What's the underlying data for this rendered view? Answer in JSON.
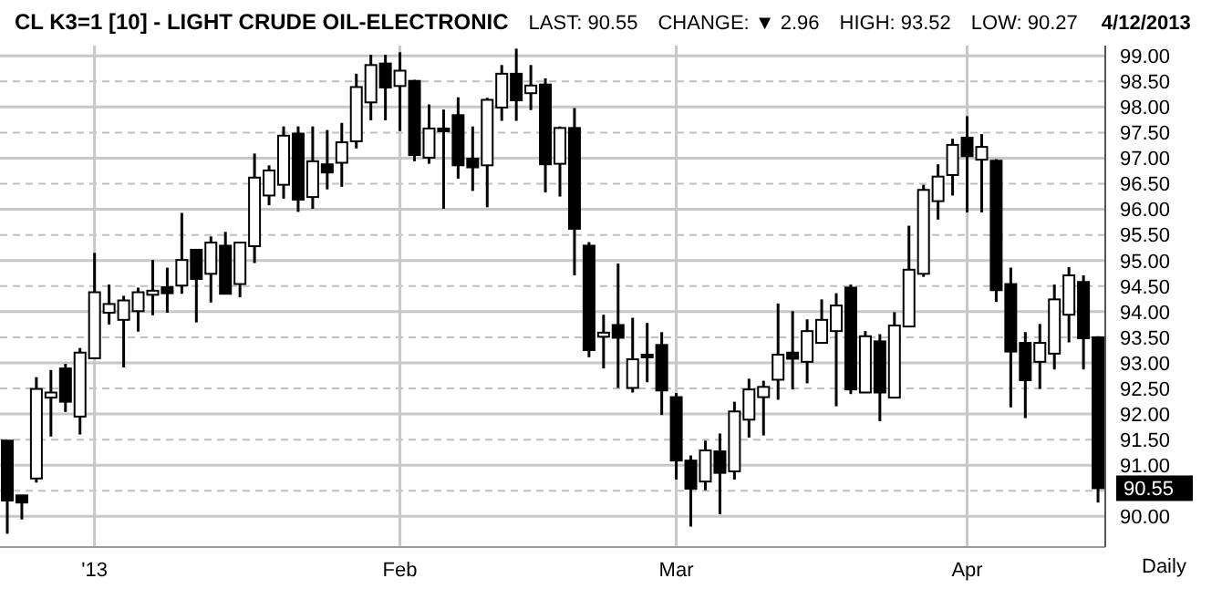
{
  "chart_data": {
    "type": "candlestick",
    "title": "CL K3=1 [10] - LIGHT CRUDE OIL-ELECTRONIC",
    "annotations": [
      "LAST: 90.55",
      "CHANGE: ▼ 2.96",
      "HIGH: 93.52",
      "LOW: 90.27",
      "4/12/2013",
      "90.55",
      "Daily"
    ],
    "categories": [
      null,
      null,
      null,
      null,
      null,
      null,
      "'13",
      null,
      null,
      null,
      null,
      null,
      null,
      null,
      null,
      null,
      null,
      null,
      null,
      null,
      null,
      null,
      null,
      null,
      null,
      null,
      null,
      "Feb",
      null,
      null,
      null,
      null,
      null,
      null,
      null,
      null,
      null,
      null,
      null,
      null,
      null,
      null,
      null,
      null,
      null,
      null,
      "Mar",
      null,
      null,
      null,
      null,
      null,
      null,
      null,
      null,
      null,
      null,
      null,
      null,
      null,
      null,
      null,
      null,
      null,
      null,
      null,
      "Apr",
      null,
      null,
      null,
      null,
      null,
      null,
      null,
      null,
      null
    ],
    "ohlc": [
      [
        91.48,
        91.48,
        89.66,
        90.31
      ],
      [
        90.41,
        90.41,
        89.94,
        90.27
      ],
      [
        90.74,
        92.72,
        90.66,
        92.49
      ],
      [
        92.32,
        92.86,
        91.56,
        92.42
      ],
      [
        92.89,
        92.98,
        92.04,
        92.24
      ],
      [
        91.95,
        93.29,
        91.6,
        93.2
      ],
      [
        93.09,
        95.15,
        93.09,
        94.38
      ],
      [
        93.98,
        94.53,
        93.75,
        94.15
      ],
      [
        93.84,
        94.31,
        92.91,
        94.22
      ],
      [
        94.01,
        94.47,
        93.61,
        94.38
      ],
      [
        94.33,
        95.01,
        93.93,
        94.41
      ],
      [
        94.48,
        94.86,
        93.98,
        94.36
      ],
      [
        94.51,
        95.93,
        94.35,
        95.01
      ],
      [
        95.21,
        95.21,
        93.79,
        94.64
      ],
      [
        94.74,
        95.47,
        94.18,
        95.35
      ],
      [
        95.29,
        95.56,
        94.35,
        94.35
      ],
      [
        94.54,
        95.35,
        94.28,
        95.35
      ],
      [
        95.28,
        97.09,
        94.95,
        96.62
      ],
      [
        96.27,
        96.86,
        96.08,
        96.76
      ],
      [
        96.48,
        97.62,
        96.21,
        97.44
      ],
      [
        97.48,
        97.62,
        95.95,
        96.19
      ],
      [
        96.24,
        97.62,
        96.01,
        96.94
      ],
      [
        96.88,
        97.55,
        96.39,
        96.72
      ],
      [
        96.91,
        97.69,
        96.44,
        97.31
      ],
      [
        97.33,
        98.65,
        97.19,
        98.39
      ],
      [
        98.09,
        99.02,
        97.74,
        98.82
      ],
      [
        98.85,
        99.02,
        97.74,
        98.38
      ],
      [
        98.41,
        99.07,
        97.53,
        98.71
      ],
      [
        98.51,
        98.53,
        96.94,
        97.06
      ],
      [
        97.01,
        98.05,
        96.89,
        97.58
      ],
      [
        97.58,
        97.95,
        96.01,
        97.53
      ],
      [
        97.84,
        98.19,
        96.6,
        96.86
      ],
      [
        96.99,
        97.62,
        96.36,
        96.82
      ],
      [
        96.86,
        98.18,
        96.04,
        98.14
      ],
      [
        97.99,
        98.82,
        97.73,
        98.65
      ],
      [
        98.65,
        99.14,
        97.73,
        98.13
      ],
      [
        98.27,
        98.82,
        97.94,
        98.42
      ],
      [
        98.44,
        98.56,
        96.33,
        96.88
      ],
      [
        96.89,
        97.62,
        96.25,
        97.59
      ],
      [
        97.59,
        97.98,
        94.71,
        95.62
      ],
      [
        95.29,
        95.36,
        93.11,
        93.25
      ],
      [
        93.51,
        93.94,
        92.89,
        93.59
      ],
      [
        93.74,
        94.94,
        92.51,
        93.49
      ],
      [
        92.51,
        93.88,
        92.42,
        93.07
      ],
      [
        93.16,
        93.78,
        92.62,
        93.12
      ],
      [
        93.35,
        93.6,
        91.98,
        92.46
      ],
      [
        92.33,
        92.41,
        90.72,
        91.09
      ],
      [
        91.09,
        91.19,
        89.8,
        90.54
      ],
      [
        90.68,
        91.48,
        90.51,
        91.29
      ],
      [
        91.27,
        91.62,
        90.04,
        90.85
      ],
      [
        90.88,
        92.24,
        90.72,
        92.05
      ],
      [
        91.89,
        92.69,
        91.54,
        92.48
      ],
      [
        92.33,
        92.65,
        91.58,
        92.53
      ],
      [
        92.67,
        94.16,
        92.28,
        93.16
      ],
      [
        93.2,
        94.01,
        92.48,
        93.08
      ],
      [
        93.02,
        93.85,
        92.6,
        93.62
      ],
      [
        93.39,
        94.24,
        93.39,
        93.84
      ],
      [
        93.62,
        94.36,
        92.15,
        94.12
      ],
      [
        94.47,
        94.53,
        92.39,
        92.48
      ],
      [
        92.42,
        93.62,
        92.42,
        93.52
      ],
      [
        93.42,
        93.56,
        91.86,
        92.42
      ],
      [
        92.32,
        93.99,
        92.32,
        93.73
      ],
      [
        93.71,
        95.68,
        93.71,
        94.82
      ],
      [
        94.74,
        96.48,
        94.68,
        96.38
      ],
      [
        96.16,
        96.88,
        95.8,
        96.64
      ],
      [
        96.67,
        97.38,
        96.27,
        97.26
      ],
      [
        97.4,
        97.82,
        95.94,
        97.04
      ],
      [
        96.97,
        97.47,
        95.94,
        97.22
      ],
      [
        96.95,
        96.98,
        94.19,
        94.42
      ],
      [
        94.54,
        94.86,
        92.13,
        93.22
      ],
      [
        93.39,
        93.6,
        91.92,
        92.66
      ],
      [
        93.02,
        93.76,
        92.49,
        93.39
      ],
      [
        93.18,
        94.53,
        92.87,
        94.24
      ],
      [
        93.94,
        94.87,
        93.4,
        94.71
      ],
      [
        94.58,
        94.71,
        92.87,
        93.48
      ],
      [
        93.5,
        93.52,
        90.27,
        90.55
      ]
    ],
    "ylim": [
      89.4,
      99.2
    ],
    "yticks": [
      {
        "value": 90,
        "label": "90.00"
      },
      {
        "value": 90.5,
        "label": null
      },
      {
        "value": 91,
        "label": "91.00"
      },
      {
        "value": 91.5,
        "label": "91.50"
      },
      {
        "value": 92,
        "label": "92.00"
      },
      {
        "value": 92.5,
        "label": "92.50"
      },
      {
        "value": 93,
        "label": "93.00"
      },
      {
        "value": 93.5,
        "label": "93.50"
      },
      {
        "value": 94,
        "label": "94.00"
      },
      {
        "value": 94.5,
        "label": "94.50"
      },
      {
        "value": 95,
        "label": "95.00"
      },
      {
        "value": 95.5,
        "label": "95.50"
      },
      {
        "value": 96,
        "label": "96.00"
      },
      {
        "value": 96.5,
        "label": "96.50"
      },
      {
        "value": 97,
        "label": "97.00"
      },
      {
        "value": 97.5,
        "label": "97.50"
      },
      {
        "value": 98,
        "label": "98.00"
      },
      {
        "value": 98.5,
        "label": "98.50"
      },
      {
        "value": 99,
        "label": "99.00"
      }
    ],
    "grid": true
  }
}
